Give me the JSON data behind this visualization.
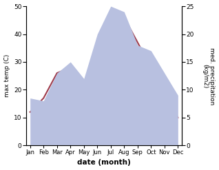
{
  "months": [
    "Jan",
    "Feb",
    "Mar",
    "Apr",
    "May",
    "Jun",
    "Jul",
    "Aug",
    "Sep",
    "Oct",
    "Nov",
    "Dec"
  ],
  "temp": [
    12,
    17,
    26,
    28,
    22,
    35,
    44,
    46,
    37,
    28,
    20,
    10
  ],
  "precip": [
    8.5,
    8,
    13,
    15,
    12,
    20,
    25,
    24,
    18,
    17,
    13,
    9
  ],
  "temp_color": "#9e3a4a",
  "precip_fill_color": "#b8c0e0",
  "xlabel": "date (month)",
  "ylabel_left": "max temp (C)",
  "ylabel_right": "med. precipitation\n(kg/m2)",
  "ylim_left": [
    0,
    50
  ],
  "ylim_right": [
    0,
    25
  ],
  "yticks_left": [
    0,
    10,
    20,
    30,
    40,
    50
  ],
  "yticks_right": [
    0,
    5,
    10,
    15,
    20,
    25
  ]
}
